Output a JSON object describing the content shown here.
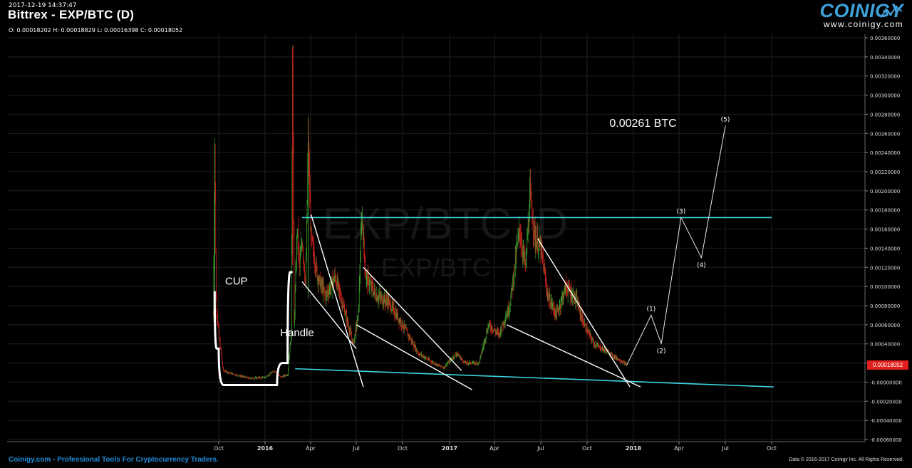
{
  "header": {
    "datetime": "2017-12-19 14:37:47",
    "title": "Bittrex - EXP/BTC (D)",
    "ohlc": "O: 0.00018202 H: 0.00018829 L: 0.00016398 C: 0.00018052"
  },
  "watermark": {
    "line1": "EXP/BTC, D",
    "line2": "EXP/BTC"
  },
  "logo": {
    "word": "COINIGY",
    "url": "www.coinigy.com",
    "graph_icon": "line-chart-icon"
  },
  "footer": {
    "left_site": "Coinigy.com",
    "left_rest": " - Professional Tools For Cryptocurrency Traders.",
    "right": "Data © 2016-2017 Coinigy Inc. All Rights Reserved."
  },
  "colors": {
    "background": "#000000",
    "grid": "#1f1f1f",
    "up_candle": "#3a9b2c",
    "down_candle": "#c8201c",
    "cyan_line": "#3fd5e0",
    "white_line": "#ffffff",
    "price_tag": "#e0201c",
    "brand_blue": "#1e8ad6"
  },
  "chart_data": {
    "type": "candlestick",
    "title": "Bittrex - EXP/BTC (D)",
    "x_ticks": [
      "Oct",
      "2016",
      "Apr",
      "Jul",
      "Oct",
      "2017",
      "Apr",
      "Jul",
      "Oct",
      "2018",
      "Apr",
      "Jul",
      "Oct"
    ],
    "y_ticks": [
      "0.00360000",
      "0.00340000",
      "0.00320000",
      "0.00300000",
      "0.00280000",
      "0.00260000",
      "0.00240000",
      "0.00220000",
      "0.00200000",
      "0.00180000",
      "0.00160000",
      "0.00140000",
      "0.00120000",
      "0.00100000",
      "0.00080000",
      "0.00060000",
      "0.00040000",
      "0.00020000",
      "-0.00000000",
      "-0.00020000",
      "-0.00040000",
      "-0.00060000"
    ],
    "ylim": [
      -0.0006,
      0.0036
    ],
    "last_price": "0.00018052",
    "price_path": [
      [
        "2015-09-20",
        0.0007
      ],
      [
        "2015-09-23",
        0.0025
      ],
      [
        "2015-09-26",
        0.00085
      ],
      [
        "2015-10-01",
        0.0005
      ],
      [
        "2015-10-10",
        0.00012
      ],
      [
        "2015-11-01",
        8e-05
      ],
      [
        "2015-12-01",
        4e-05
      ],
      [
        "2016-01-01",
        5e-05
      ],
      [
        "2016-01-20",
        0.00012
      ],
      [
        "2016-02-01",
        5e-05
      ],
      [
        "2016-02-15",
        8e-05
      ],
      [
        "2016-02-22",
        0.0005
      ],
      [
        "2016-02-25",
        0.0035
      ],
      [
        "2016-02-28",
        0.0006
      ],
      [
        "2016-03-05",
        0.0016
      ],
      [
        "2016-03-10",
        0.0012
      ],
      [
        "2016-03-15",
        0.0015
      ],
      [
        "2016-03-22",
        0.001
      ],
      [
        "2016-03-27",
        0.0025
      ],
      [
        "2016-04-02",
        0.0015
      ],
      [
        "2016-04-15",
        0.0011
      ],
      [
        "2016-05-01",
        0.0009
      ],
      [
        "2016-05-20",
        0.0011
      ],
      [
        "2016-06-10",
        0.0007
      ],
      [
        "2016-06-25",
        0.0004
      ],
      [
        "2016-07-05",
        0.0007
      ],
      [
        "2016-07-12",
        0.00175
      ],
      [
        "2016-07-20",
        0.0011
      ],
      [
        "2016-08-10",
        0.0009
      ],
      [
        "2016-09-01",
        0.00085
      ],
      [
        "2016-10-01",
        0.0006
      ],
      [
        "2016-11-01",
        0.0003
      ],
      [
        "2016-12-01",
        0.0002
      ],
      [
        "2016-12-20",
        0.00015
      ],
      [
        "2017-01-15",
        0.0003
      ],
      [
        "2017-02-01",
        0.0002
      ],
      [
        "2017-03-01",
        0.0002
      ],
      [
        "2017-03-20",
        0.0006
      ],
      [
        "2017-04-10",
        0.0005
      ],
      [
        "2017-05-01",
        0.0008
      ],
      [
        "2017-05-20",
        0.0016
      ],
      [
        "2017-06-01",
        0.0012
      ],
      [
        "2017-06-10",
        0.00195
      ],
      [
        "2017-06-20",
        0.0015
      ],
      [
        "2017-07-01",
        0.0014
      ],
      [
        "2017-07-15",
        0.0009
      ],
      [
        "2017-08-01",
        0.0007
      ],
      [
        "2017-08-20",
        0.001
      ],
      [
        "2017-09-10",
        0.00085
      ],
      [
        "2017-09-25",
        0.0006
      ],
      [
        "2017-10-15",
        0.0004
      ],
      [
        "2017-11-15",
        0.0003
      ],
      [
        "2017-12-19",
        0.00018
      ]
    ],
    "annotations": {
      "cyan_lines": [
        {
          "from": [
            "2016-03-15",
            0.00172
          ],
          "to": [
            "2018-10-01",
            0.00172
          ]
        },
        {
          "from": [
            "2016-03-01",
            0.00014
          ],
          "to": [
            "2018-10-05",
            -5e-05
          ]
        }
      ],
      "white_lines": [
        {
          "from": [
            "2016-04-02",
            0.00175
          ],
          "to": [
            "2016-07-15",
            -5e-05
          ]
        },
        {
          "from": [
            "2016-03-15",
            0.00105
          ],
          "to": [
            "2016-07-01",
            0.00035
          ]
        },
        {
          "from": [
            "2016-07-15",
            0.0012
          ],
          "to": [
            "2017-01-25",
            0.00012
          ]
        },
        {
          "from": [
            "2016-07-01",
            0.0006
          ],
          "to": [
            "2017-02-15",
            -8e-05
          ]
        },
        {
          "from": [
            "2017-06-25",
            0.0015
          ],
          "to": [
            "2017-12-25",
            -5e-05
          ]
        },
        {
          "from": [
            "2017-04-25",
            0.0006
          ],
          "to": [
            "2018-01-15",
            -5e-05
          ]
        }
      ],
      "cup_curve": {
        "points": [
          [
            "2015-09-23",
            0.00095
          ],
          [
            "2015-10-01",
            0.00035
          ],
          [
            "2015-10-20",
            -3e-05
          ],
          [
            "2015-11-20",
            -3e-05
          ],
          [
            "2016-01-25",
            -3e-05
          ],
          [
            "2016-02-15",
            0.0002
          ],
          [
            "2016-02-25",
            0.00115
          ]
        ]
      },
      "projection_path": [
        [
          "2017-12-19",
          0.00018
        ],
        [
          "2018-02-05",
          0.0007
        ],
        [
          "2018-02-25",
          0.0004
        ],
        [
          "2018-04-05",
          0.00172
        ],
        [
          "2018-05-15",
          0.0013
        ],
        [
          "2018-07-01",
          0.00268
        ]
      ],
      "wave_labels": [
        {
          "text": "(1)",
          "at": [
            "2018-02-05",
            0.0007
          ],
          "position": "above"
        },
        {
          "text": "(2)",
          "at": [
            "2018-02-25",
            0.0004
          ],
          "position": "below"
        },
        {
          "text": "(3)",
          "at": [
            "2018-04-05",
            0.00172
          ],
          "position": "above"
        },
        {
          "text": "(4)",
          "at": [
            "2018-05-15",
            0.0013
          ],
          "position": "below"
        },
        {
          "text": "(5)",
          "at": [
            "2018-07-01",
            0.00268
          ],
          "position": "above"
        }
      ],
      "text_labels": [
        {
          "text": "CUP",
          "at": [
            "2015-11-05",
            0.00102
          ]
        },
        {
          "text": "Handle",
          "at": [
            "2016-03-05",
            0.00048
          ]
        },
        {
          "text": "0.00261 BTC",
          "at": [
            "2018-01-20",
            0.00267
          ]
        }
      ]
    }
  }
}
